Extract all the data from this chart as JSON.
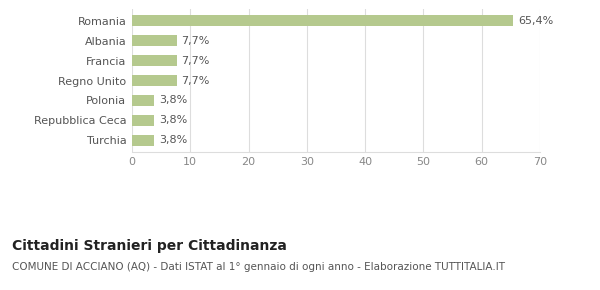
{
  "categories": [
    "Turchia",
    "Repubblica Ceca",
    "Polonia",
    "Regno Unito",
    "Francia",
    "Albania",
    "Romania"
  ],
  "values": [
    3.8,
    3.8,
    3.8,
    7.7,
    7.7,
    7.7,
    65.4
  ],
  "labels": [
    "3,8%",
    "3,8%",
    "3,8%",
    "7,7%",
    "7,7%",
    "7,7%",
    "65,4%"
  ],
  "bar_color": "#b5c98e",
  "xlim": [
    0,
    70
  ],
  "xticks": [
    0,
    10,
    20,
    30,
    40,
    50,
    60,
    70
  ],
  "title": "Cittadini Stranieri per Cittadinanza",
  "subtitle": "COMUNE DI ACCIANO (AQ) - Dati ISTAT al 1° gennaio di ogni anno - Elaborazione TUTTITALIA.IT",
  "title_fontsize": 10,
  "subtitle_fontsize": 7.5,
  "label_fontsize": 8,
  "tick_fontsize": 8,
  "ytick_fontsize": 8,
  "bg_color": "#ffffff",
  "grid_color": "#dddddd",
  "bar_height": 0.55
}
